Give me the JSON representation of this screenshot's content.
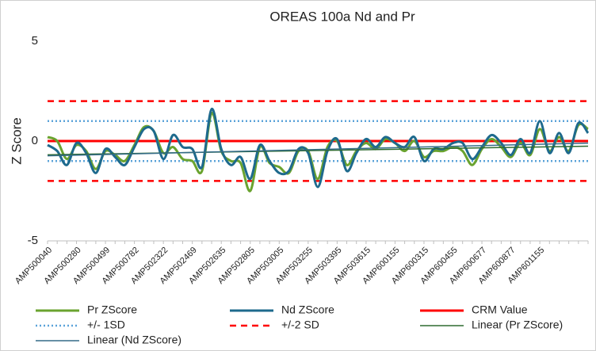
{
  "chart_data": {
    "type": "line",
    "title": "OREAS 100a Nd and Pr",
    "y_label": "Z Score",
    "categories": [
      "AMP500040",
      null,
      null,
      "AMP500280",
      null,
      null,
      "AMP500499",
      null,
      null,
      "AMP500782",
      null,
      null,
      "AMP502322",
      null,
      null,
      "AMP502469",
      null,
      null,
      "AMP502635",
      null,
      null,
      "AMP502805",
      null,
      null,
      "AMP503005",
      null,
      null,
      "AMP503255",
      null,
      null,
      "AMP503395",
      null,
      null,
      "AMP503615",
      null,
      null,
      "AMP600155",
      null,
      null,
      "AMP600315",
      null,
      null,
      "AMP600455",
      null,
      null,
      "AMP600677",
      null,
      null,
      "AMP600877",
      null,
      null,
      "AMP601155",
      null,
      null,
      null,
      null,
      null
    ],
    "series": [
      {
        "name": "Pr ZScore",
        "color": "#6aa32f",
        "values": [
          0.2,
          0.0,
          -0.9,
          -0.2,
          -0.5,
          -1.4,
          -0.5,
          -0.7,
          -1.0,
          -0.2,
          0.7,
          0.5,
          -0.6,
          -0.3,
          -0.9,
          -1.0,
          -1.5,
          1.4,
          -0.5,
          -1.0,
          -1.1,
          -2.5,
          -0.3,
          -1.1,
          -1.3,
          -1.6,
          -0.5,
          -0.5,
          -1.9,
          -0.3,
          0.0,
          -1.2,
          -0.5,
          -0.1,
          -0.4,
          0.1,
          -0.1,
          -0.5,
          0.0,
          -0.8,
          -0.5,
          -0.5,
          -0.3,
          -0.5,
          -1.2,
          -0.4,
          0.1,
          -0.3,
          -0.8,
          -0.1,
          -0.7,
          0.6,
          -0.5,
          0.2,
          -0.5,
          0.8,
          0.6
        ]
      },
      {
        "name": "Nd ZScore",
        "color": "#1e6a8d",
        "values": [
          -0.2,
          -0.5,
          -1.2,
          -0.1,
          -0.6,
          -1.6,
          -0.4,
          -0.8,
          -1.2,
          -0.3,
          0.6,
          0.5,
          -0.9,
          0.3,
          -0.3,
          -0.4,
          -1.3,
          1.6,
          -0.4,
          -1.2,
          -0.8,
          -1.9,
          -0.2,
          -1.0,
          -1.6,
          -1.5,
          -0.4,
          -0.6,
          -2.3,
          -0.5,
          0.1,
          -1.5,
          -0.6,
          0.1,
          -0.3,
          0.2,
          -0.1,
          -0.3,
          0.2,
          -1.0,
          -0.4,
          -0.4,
          -0.1,
          -0.1,
          -0.9,
          -0.3,
          0.3,
          -0.1,
          -0.7,
          0.1,
          -0.6,
          1.0,
          -0.6,
          0.4,
          -0.6,
          0.9,
          0.4
        ]
      }
    ],
    "reference_lines": [
      {
        "name": "CRM Value",
        "color": "#ff0000",
        "style": "solid",
        "values": [
          0
        ]
      },
      {
        "name": "+/- 1SD",
        "color": "#5ba3d9",
        "style": "dotted",
        "values": [
          1,
          -1
        ]
      },
      {
        "name": "+/-2 SD",
        "color": "#ff0000",
        "style": "dashed",
        "values": [
          2,
          -2
        ]
      }
    ],
    "trendlines": [
      {
        "name": "Linear (Pr ZScore)",
        "color": "#2e6b30",
        "series": 0
      },
      {
        "name": "Linear (Nd ZScore)",
        "color": "#336b87",
        "series": 1
      }
    ],
    "ylim": [
      -5,
      5
    ],
    "yticks": [
      -5,
      0,
      5
    ],
    "grid": false
  }
}
